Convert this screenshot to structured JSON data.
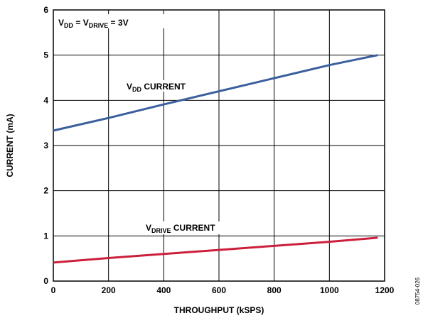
{
  "chart_data": {
    "type": "line",
    "title": "",
    "xlabel": "THROUGHPUT (kSPS)",
    "ylabel": "CURRENT (mA)",
    "xlim": [
      0,
      1200
    ],
    "ylim": [
      0,
      6
    ],
    "xticks": [
      0,
      200,
      400,
      600,
      800,
      1000,
      1200
    ],
    "yticks": [
      0,
      1,
      2,
      3,
      4,
      5,
      6
    ],
    "grid": true,
    "annotation": {
      "parts": [
        {
          "text": "V",
          "sub": false
        },
        {
          "text": "DD",
          "sub": true
        },
        {
          "text": " = V",
          "sub": false
        },
        {
          "text": "DRIVE",
          "sub": true
        },
        {
          "text": " = 3V",
          "sub": false
        }
      ]
    },
    "series": [
      {
        "name": "VDD CURRENT",
        "label_parts": [
          {
            "text": "V",
            "sub": false
          },
          {
            "text": "DD",
            "sub": true
          },
          {
            "text": " CURRENT",
            "sub": false
          }
        ],
        "color": "#3a5f9c",
        "x": [
          0,
          200,
          400,
          600,
          800,
          1000,
          1175
        ],
        "y": [
          3.33,
          3.61,
          3.91,
          4.2,
          4.49,
          4.78,
          5.0
        ]
      },
      {
        "name": "VDRIVE CURRENT",
        "label_parts": [
          {
            "text": "V",
            "sub": false
          },
          {
            "text": "DRIVE",
            "sub": true
          },
          {
            "text": " CURRENT",
            "sub": false
          }
        ],
        "color": "#cc1f3c",
        "x": [
          0,
          200,
          400,
          600,
          800,
          1000,
          1175
        ],
        "y": [
          0.41,
          0.51,
          0.6,
          0.69,
          0.78,
          0.87,
          0.96
        ]
      }
    ]
  },
  "figure_id": "08754-026"
}
